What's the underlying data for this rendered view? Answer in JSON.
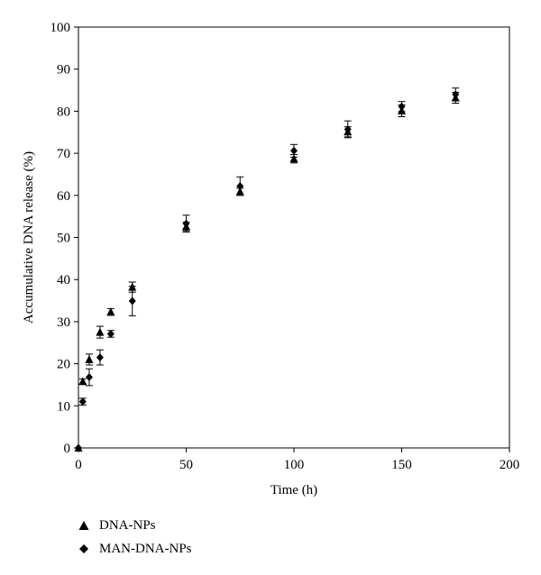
{
  "chart_data": {
    "type": "scatter",
    "xlabel": "Time (h)",
    "ylabel": "Accumulative DNA release (%)",
    "xlim": [
      0,
      200
    ],
    "ylim": [
      0,
      100
    ],
    "xticks": [
      0,
      50,
      100,
      150,
      200
    ],
    "yticks": [
      0,
      10,
      20,
      30,
      40,
      50,
      60,
      70,
      80,
      90,
      100
    ],
    "grid": false,
    "legend_position": "bottom-left",
    "series": [
      {
        "name": "DNA-NPs",
        "marker": "triangle",
        "x": [
          0,
          2,
          5,
          10,
          15,
          25,
          50,
          75,
          100,
          125,
          150,
          175
        ],
        "y": [
          0,
          15.8,
          21.0,
          27.5,
          32.3,
          38.2,
          52.6,
          60.9,
          68.7,
          75.1,
          80.1,
          83.2
        ],
        "error": [
          0,
          0.6,
          1.3,
          1.4,
          0.8,
          1.2,
          1.0,
          0.8,
          1.0,
          1.2,
          1.4,
          1.3
        ]
      },
      {
        "name": "MAN-DNA-NPs",
        "marker": "diamond",
        "x": [
          0,
          2,
          5,
          10,
          15,
          25,
          50,
          75,
          100,
          125,
          150,
          175
        ],
        "y": [
          0,
          11.0,
          16.8,
          21.5,
          27.1,
          34.9,
          53.3,
          62.2,
          70.6,
          75.7,
          81.1,
          84.0
        ],
        "error": [
          0,
          0.8,
          2.0,
          1.8,
          0.8,
          3.5,
          2.0,
          2.2,
          1.5,
          2.0,
          1.2,
          1.5
        ]
      }
    ]
  }
}
